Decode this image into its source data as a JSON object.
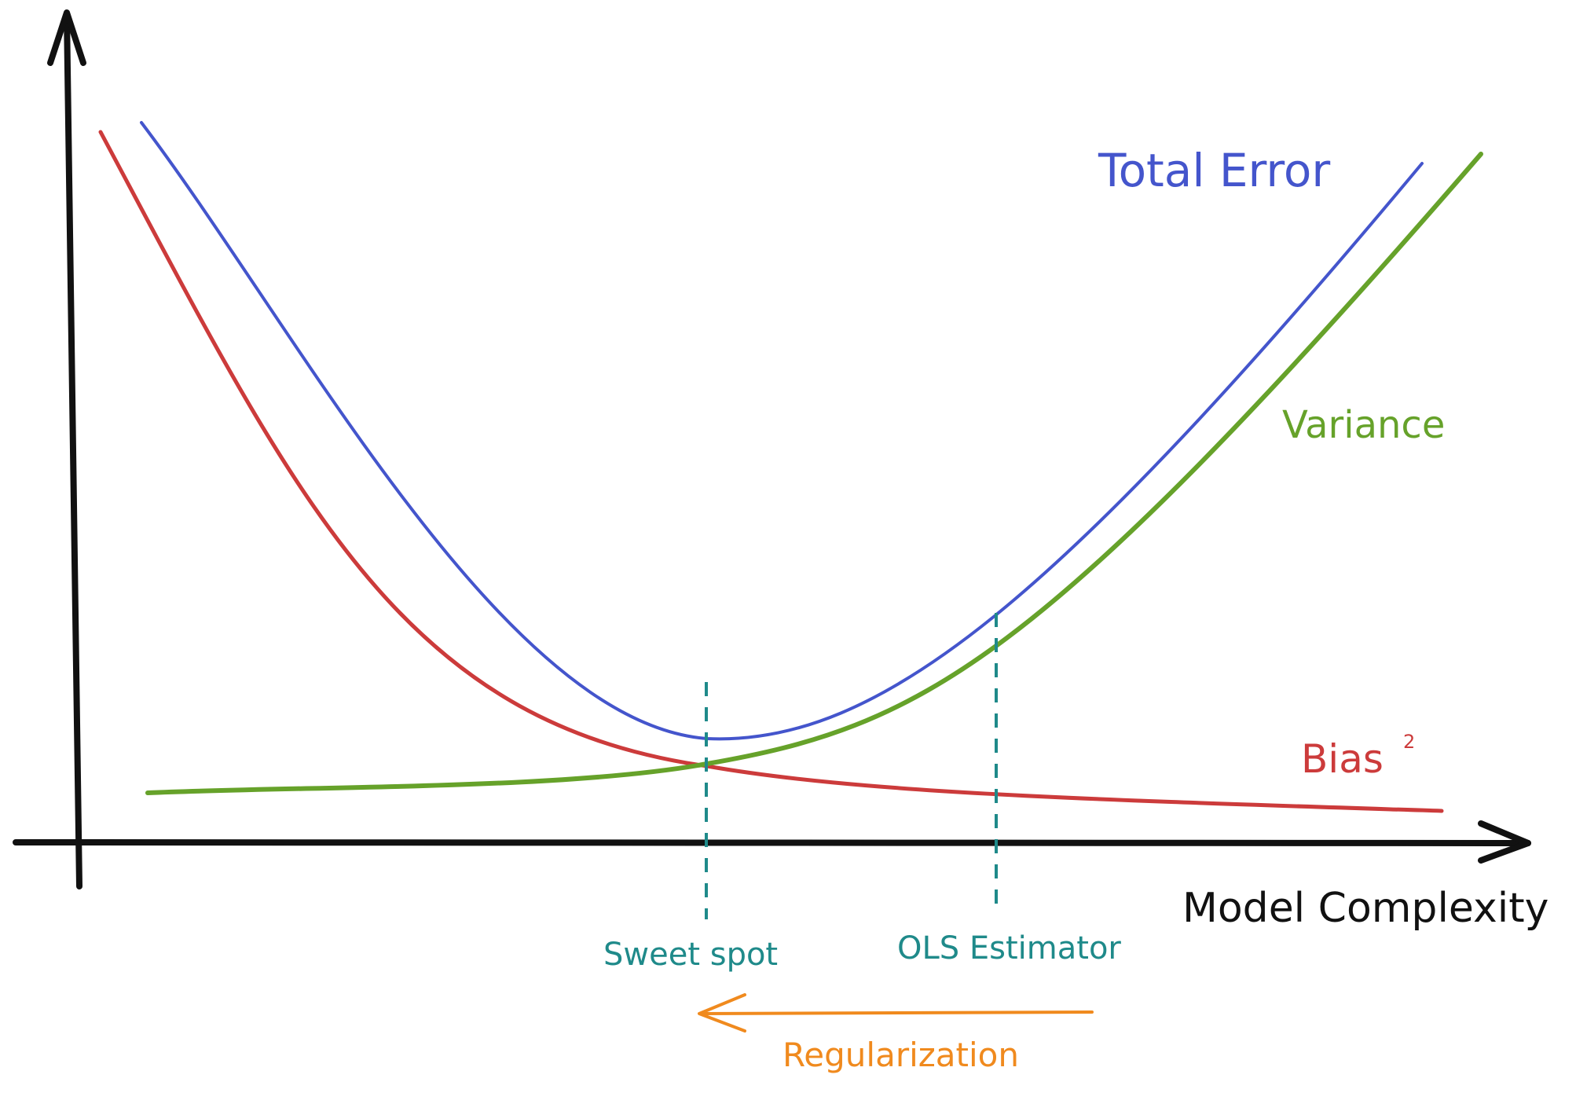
{
  "diagram": {
    "x_axis_label": "Model Complexity",
    "curves": {
      "total_error": {
        "label": "Total Error",
        "color": "#4455cc"
      },
      "variance": {
        "label": "Variance",
        "color": "#66a22a"
      },
      "bias": {
        "label": "Bias",
        "superscript": "2",
        "color": "#cc3b3b"
      }
    },
    "markers": {
      "sweet_spot": {
        "label": "Sweet spot",
        "color": "#1f8a8a"
      },
      "ols": {
        "label": "OLS Estimator",
        "color": "#1f8a8a"
      }
    },
    "regularization": {
      "label": "Regularization",
      "direction": "left",
      "color": "#f08a1e"
    }
  }
}
